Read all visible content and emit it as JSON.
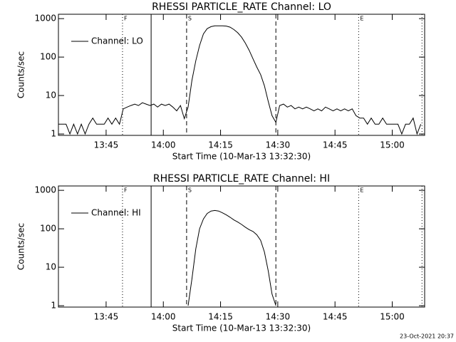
{
  "footer": "23-Oct-2021 20:37",
  "chart_data": [
    {
      "type": "line",
      "title": "RHESSI PARTICLE_RATE Channel: LO",
      "xlabel": "Start Time (10-Mar-13 13:32:30)",
      "ylabel": "Counts/sec",
      "log_y": true,
      "color": "#000000",
      "legend": "upper left",
      "xlim": [
        0,
        96
      ],
      "ylim": [
        0.92,
        1300
      ],
      "xticks": [
        {
          "value": 12.5,
          "label": "13:45"
        },
        {
          "value": 27.5,
          "label": "14:00"
        },
        {
          "value": 42.5,
          "label": "14:15"
        },
        {
          "value": 57.5,
          "label": "14:30"
        },
        {
          "value": 72.5,
          "label": "14:45"
        },
        {
          "value": 87.5,
          "label": "15:00"
        }
      ],
      "yticks": [
        1,
        10,
        100,
        1000
      ],
      "events": [
        {
          "x": 16.8,
          "dash": "dotted",
          "label": "F"
        },
        {
          "x": 24.3,
          "dash": "solid"
        },
        {
          "x": 33.6,
          "dash": "dashed",
          "label": "S"
        },
        {
          "x": 57,
          "dash": "dashed"
        },
        {
          "x": 78.7,
          "dash": "dotted",
          "label": "E"
        },
        {
          "x": 95.3,
          "dash": "dotted"
        }
      ],
      "x": [
        0,
        1,
        2,
        3,
        4,
        5,
        6,
        7,
        8,
        9,
        10,
        11,
        12,
        13,
        14,
        15,
        16,
        17,
        18,
        19,
        20,
        21,
        22,
        23,
        24,
        25,
        26,
        27,
        28,
        29,
        30,
        31,
        32,
        33,
        34,
        35,
        36,
        37,
        38,
        39,
        40,
        41,
        42,
        43,
        44,
        45,
        46,
        47,
        48,
        49,
        50,
        51,
        52,
        53,
        54,
        55,
        56,
        57,
        58,
        59,
        60,
        61,
        62,
        63,
        64,
        65,
        66,
        67,
        68,
        69,
        70,
        71,
        72,
        73,
        74,
        75,
        76,
        77,
        78,
        79,
        80,
        81,
        82,
        83,
        84,
        85,
        86,
        87,
        88,
        89,
        90,
        91,
        92,
        93,
        94,
        95
      ],
      "series": [
        {
          "name": "Channel: LO",
          "color": "#000000",
          "values": [
            1.8,
            1.8,
            1.8,
            1,
            1.8,
            1,
            1.8,
            1,
            1.8,
            2.6,
            1.8,
            1.8,
            1.8,
            2.6,
            1.8,
            2.6,
            1.8,
            4.5,
            5,
            5.5,
            6,
            5.5,
            6.5,
            6,
            5.5,
            6,
            5,
            6,
            5.5,
            6,
            5,
            4,
            5.5,
            2.5,
            5,
            25,
            80,
            200,
            400,
            550,
            620,
            650,
            650,
            650,
            640,
            600,
            520,
            430,
            330,
            230,
            150,
            90,
            55,
            35,
            18,
            7,
            3,
            2,
            5.5,
            6,
            5,
            5.5,
            4.5,
            5,
            4.5,
            5,
            4.5,
            4,
            4.5,
            4,
            5,
            4.5,
            4,
            4.5,
            4,
            4.5,
            4,
            4.5,
            3,
            2.6,
            2.6,
            1.8,
            2.6,
            1.8,
            1.8,
            2.6,
            1.8,
            1.8,
            1.8,
            1.8,
            1,
            1.8,
            1.8,
            2.6,
            1,
            1.8
          ]
        }
      ]
    },
    {
      "type": "line",
      "title": "RHESSI PARTICLE_RATE Channel: HI",
      "xlabel": "Start Time (10-Mar-13 13:32:30)",
      "ylabel": "Counts/sec",
      "log_y": true,
      "color": "#000000",
      "legend": "upper left",
      "xlim": [
        0,
        96
      ],
      "ylim": [
        0.92,
        1300
      ],
      "xticks": [
        {
          "value": 12.5,
          "label": "13:45"
        },
        {
          "value": 27.5,
          "label": "14:00"
        },
        {
          "value": 42.5,
          "label": "14:15"
        },
        {
          "value": 57.5,
          "label": "14:30"
        },
        {
          "value": 72.5,
          "label": "14:45"
        },
        {
          "value": 87.5,
          "label": "15:00"
        }
      ],
      "yticks": [
        1,
        10,
        100,
        1000
      ],
      "events": [
        {
          "x": 16.8,
          "dash": "dotted",
          "label": "F"
        },
        {
          "x": 24.3,
          "dash": "solid"
        },
        {
          "x": 33.6,
          "dash": "dashed",
          "label": "S"
        },
        {
          "x": 57,
          "dash": "dashed"
        },
        {
          "x": 78.7,
          "dash": "dotted",
          "label": "E"
        },
        {
          "x": 95.3,
          "dash": "dotted"
        }
      ],
      "x": [
        34,
        35,
        36,
        37,
        38,
        39,
        40,
        41,
        42,
        43,
        44,
        45,
        46,
        47,
        48,
        49,
        50,
        51,
        52,
        53,
        54,
        55,
        56,
        57
      ],
      "series": [
        {
          "name": "Channel: HI",
          "color": "#000000",
          "values": [
            1,
            5,
            30,
            100,
            180,
            250,
            290,
            300,
            290,
            260,
            230,
            200,
            170,
            150,
            130,
            110,
            95,
            85,
            70,
            50,
            25,
            8,
            2,
            1
          ]
        }
      ]
    }
  ]
}
